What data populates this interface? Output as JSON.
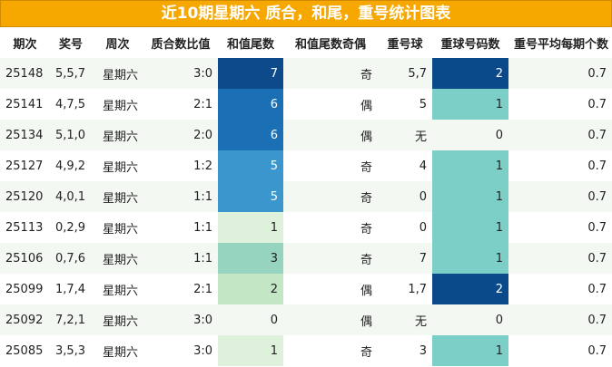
{
  "title": "近10期星期六 质合，和尾，重号统计图表",
  "headers": [
    "期次",
    "奖号",
    "周次",
    "质合数比值",
    "和值尾数",
    "和值尾数奇偶",
    "重号球",
    "重球号码数",
    "重号平均每期个数"
  ],
  "rows": [
    {
      "issue": "25148",
      "numbers": "5,5,7",
      "weekday": "星期六",
      "ratio": "3:0",
      "tail": "7",
      "parity": "奇",
      "repeat": "5,7",
      "repeat_count": "2",
      "avg": "0.7"
    },
    {
      "issue": "25141",
      "numbers": "4,7,5",
      "weekday": "星期六",
      "ratio": "2:1",
      "tail": "6",
      "parity": "偶",
      "repeat": "5",
      "repeat_count": "1",
      "avg": "0.7"
    },
    {
      "issue": "25134",
      "numbers": "5,1,0",
      "weekday": "星期六",
      "ratio": "2:0",
      "tail": "6",
      "parity": "偶",
      "repeat": "无",
      "repeat_count": "0",
      "avg": "0.7"
    },
    {
      "issue": "25127",
      "numbers": "4,9,2",
      "weekday": "星期六",
      "ratio": "1:2",
      "tail": "5",
      "parity": "奇",
      "repeat": "4",
      "repeat_count": "1",
      "avg": "0.7"
    },
    {
      "issue": "25120",
      "numbers": "4,0,1",
      "weekday": "星期六",
      "ratio": "1:1",
      "tail": "5",
      "parity": "奇",
      "repeat": "0",
      "repeat_count": "1",
      "avg": "0.7"
    },
    {
      "issue": "25113",
      "numbers": "0,2,9",
      "weekday": "星期六",
      "ratio": "1:1",
      "tail": "1",
      "parity": "奇",
      "repeat": "0",
      "repeat_count": "1",
      "avg": "0.7"
    },
    {
      "issue": "25106",
      "numbers": "0,7,6",
      "weekday": "星期六",
      "ratio": "1:1",
      "tail": "3",
      "parity": "奇",
      "repeat": "7",
      "repeat_count": "1",
      "avg": "0.7"
    },
    {
      "issue": "25099",
      "numbers": "1,7,4",
      "weekday": "星期六",
      "ratio": "2:1",
      "tail": "2",
      "parity": "偶",
      "repeat": "1,7",
      "repeat_count": "2",
      "avg": "0.7"
    },
    {
      "issue": "25092",
      "numbers": "7,2,1",
      "weekday": "星期六",
      "ratio": "3:0",
      "tail": "0",
      "parity": "偶",
      "repeat": "无",
      "repeat_count": "0",
      "avg": "0.7"
    },
    {
      "issue": "25085",
      "numbers": "3,5,3",
      "weekday": "星期六",
      "ratio": "3:0",
      "tail": "1",
      "parity": "奇",
      "repeat": "3",
      "repeat_count": "1",
      "avg": "0.7"
    }
  ],
  "colors": {
    "title_bg": "#f6a800",
    "tail": {
      "7": "#0c4a8a",
      "6": "#1a6fb5",
      "5": "#3a96cc",
      "3": "#96d4bf",
      "2": "#c3e6c4",
      "1": "#def2db",
      "0": ""
    },
    "repeat_count": {
      "2": "#0b4a8a",
      "1": "#7ccfc7",
      "0": ""
    }
  }
}
